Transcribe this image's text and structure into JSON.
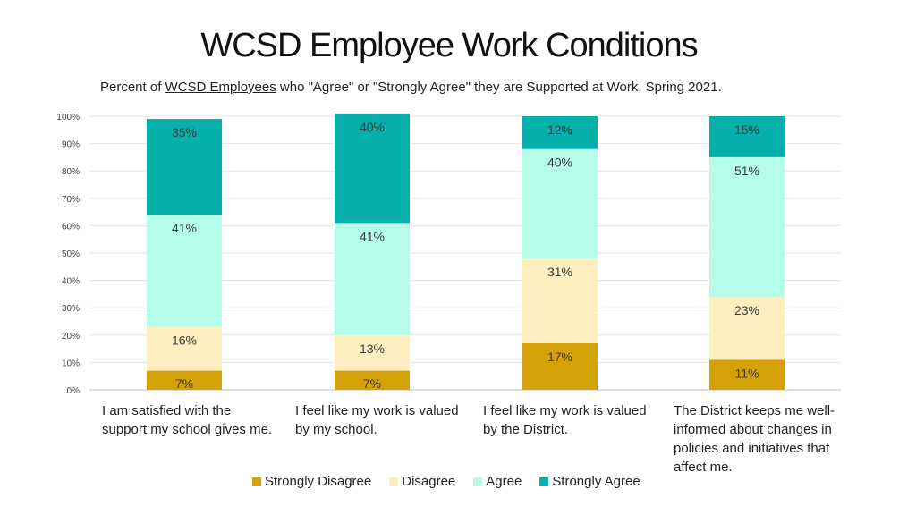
{
  "title": "WCSD Employee Work Conditions",
  "subtitle": {
    "prefix": "Percent of ",
    "underlined": "WCSD Employees",
    "suffix": " who \"Agree\" or \"Strongly Agree\" they are Supported at Work, Spring 2021."
  },
  "chart_data": {
    "type": "bar",
    "stacked": true,
    "categories": [
      "I am satisfied with the support my school gives me.",
      "I feel like my work is valued by my school.",
      "I feel like my work is valued by the District.",
      "The District keeps me well-informed about changes in policies and initiatives that affect me."
    ],
    "series": [
      {
        "name": "Strongly Disagree",
        "color": "#d4a106",
        "values": [
          7,
          7,
          17,
          11
        ]
      },
      {
        "name": "Disagree",
        "color": "#fdefc0",
        "values": [
          16,
          13,
          31,
          23
        ]
      },
      {
        "name": "Agree",
        "color": "#b6fde9",
        "values": [
          41,
          41,
          40,
          51
        ]
      },
      {
        "name": "Strongly Agree",
        "color": "#06b0aa",
        "values": [
          35,
          40,
          12,
          15
        ]
      }
    ],
    "data_labels": [
      [
        "7%",
        "16%",
        "41%",
        "35%"
      ],
      [
        "7%",
        "13%",
        "41%",
        "40%"
      ],
      [
        "17%",
        "31%",
        "40%",
        "12%"
      ],
      [
        "11%",
        "23%",
        "51%",
        "15%"
      ]
    ],
    "yticks": [
      "0%",
      "10%",
      "20%",
      "30%",
      "40%",
      "50%",
      "60%",
      "70%",
      "80%",
      "90%",
      "100%"
    ],
    "ylim": [
      0,
      100
    ],
    "grid": true,
    "legend_position": "bottom"
  },
  "category_labels": [
    [
      "I am satisfied with the",
      "support my school gives me."
    ],
    [
      "I feel like my work is valued",
      "by my school."
    ],
    [
      "I feel like my work is valued",
      "by the District."
    ],
    [
      "The District keeps me well-",
      "informed about changes in",
      "policies and initiatives that",
      "affect me."
    ]
  ]
}
